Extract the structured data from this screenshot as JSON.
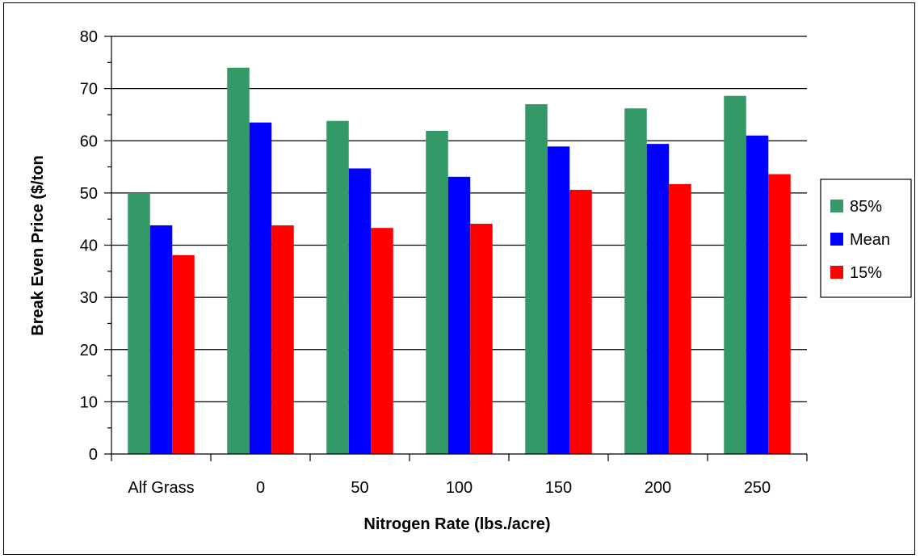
{
  "chart_data": {
    "type": "bar",
    "xlabel": "Nitrogen Rate (lbs./acre)",
    "ylabel": "Break Even Price ($/ton",
    "ylim": [
      0,
      80
    ],
    "yticks": [
      0,
      10,
      20,
      30,
      40,
      50,
      60,
      70,
      80
    ],
    "grid": "horizontal",
    "legend_position": "right",
    "categories": [
      "Alf Grass",
      "0",
      "50",
      "100",
      "150",
      "200",
      "250"
    ],
    "series": [
      {
        "name": "85%",
        "color": "#339966",
        "values": [
          50,
          74,
          63.8,
          61.9,
          67,
          66.2,
          68.6
        ]
      },
      {
        "name": "Mean",
        "color": "#0000ff",
        "values": [
          43.8,
          63.5,
          54.7,
          53.1,
          58.9,
          59.4,
          61
        ]
      },
      {
        "name": "15%",
        "color": "#ff0000",
        "values": [
          38.1,
          43.8,
          43.3,
          44.1,
          50.6,
          51.7,
          53.6
        ]
      }
    ]
  }
}
